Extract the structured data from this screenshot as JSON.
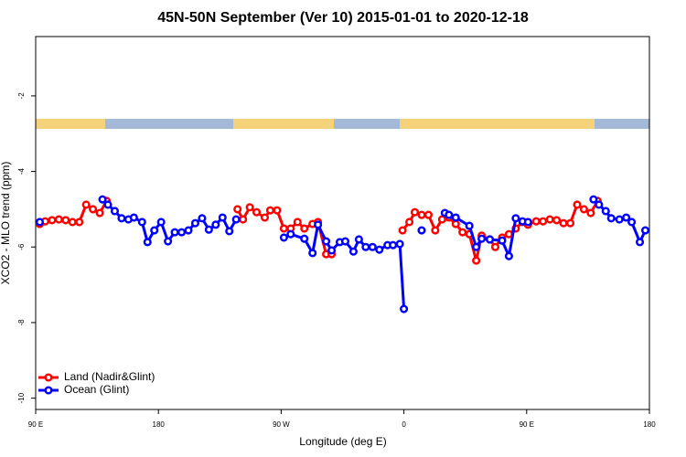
{
  "chart_data": {
    "type": "line",
    "title": "45N-50N September (Ver 10)   2015-01-01 to 2020-12-18",
    "x_label": "Longitude (deg E)",
    "y_label": "XCO2 - MLO trend (ppm)",
    "xlim": [
      90,
      540
    ],
    "xticks": [
      {
        "value": 90,
        "label": "90 E"
      },
      180,
      {
        "value": 270,
        "label": "90 W"
      },
      {
        "value": 360,
        "label": "0"
      },
      {
        "value": 450,
        "label": "90 E"
      },
      {
        "value": 540,
        "label": "180"
      }
    ],
    "ylim": [
      -10.3,
      -0.43
    ],
    "yticks": [
      -10,
      -8,
      -6,
      -4,
      -2
    ],
    "legend": "bottom-left",
    "series": [
      {
        "name": "Land (Nadir&Glint)",
        "color": "#ff0000",
        "x": [
          93,
          97,
          102,
          107,
          112,
          117,
          122,
          127,
          132,
          137,
          142,
          190,
          238,
          242,
          247,
          252,
          258,
          262,
          267,
          272,
          277,
          282,
          287,
          293,
          297,
          303,
          307,
          330,
          359,
          364,
          368,
          373,
          378,
          383,
          388,
          393,
          398,
          403,
          408,
          413,
          417,
          423,
          427,
          432,
          437,
          442,
          447,
          451,
          457,
          462,
          467,
          472,
          477,
          482,
          487,
          492,
          497,
          502
        ],
        "values": [
          -5.39,
          -5.32,
          -5.29,
          -5.27,
          -5.29,
          -5.34,
          -5.34,
          -4.88,
          -5.0,
          -5.1,
          -4.78,
          null,
          -5.0,
          -5.27,
          -4.95,
          -5.08,
          -5.22,
          -5.03,
          -5.03,
          -5.51,
          -5.51,
          -5.34,
          -5.51,
          -5.39,
          -5.34,
          -6.19,
          -6.19,
          null,
          -5.56,
          -5.34,
          -5.08,
          -5.15,
          -5.15,
          -5.56,
          -5.27,
          -5.22,
          -5.39,
          -5.61,
          -5.66,
          -6.36,
          -5.7,
          -5.8,
          -6.0,
          -5.75,
          -5.66,
          -5.51,
          -5.34,
          -5.41,
          -5.32,
          -5.32,
          -5.27,
          -5.29,
          -5.37,
          -5.37,
          -4.88,
          -5.0,
          -5.1,
          -4.78
        ]
      },
      {
        "name": "Ocean (Glint)",
        "color": "#0000ff",
        "x": [
          93,
          116,
          139,
          143,
          148,
          153,
          158,
          162,
          168,
          172,
          177,
          182,
          187,
          192,
          197,
          202,
          207,
          212,
          217,
          222,
          227,
          232,
          237,
          255,
          272,
          277,
          287,
          293,
          297,
          303,
          307,
          313,
          317,
          323,
          327,
          332,
          337,
          342,
          348,
          352,
          357,
          360,
          367,
          373,
          382,
          390,
          393,
          398,
          408,
          413,
          417,
          423,
          432,
          437,
          442,
          447,
          451,
          475,
          499,
          503,
          508,
          512,
          518,
          523,
          527,
          533,
          537
        ],
        "values": [
          -5.34,
          null,
          -4.74,
          -4.88,
          -5.05,
          -5.24,
          -5.27,
          -5.22,
          -5.34,
          -5.87,
          -5.56,
          -5.34,
          -5.85,
          -5.61,
          -5.61,
          -5.56,
          -5.37,
          -5.24,
          -5.54,
          -5.41,
          -5.22,
          -5.58,
          -5.27,
          null,
          -5.75,
          -5.66,
          -5.78,
          -6.16,
          -5.41,
          -5.85,
          -6.09,
          -5.87,
          -5.85,
          -6.12,
          -5.8,
          -6.0,
          -6.0,
          -6.07,
          -5.95,
          -5.95,
          -5.92,
          -7.64,
          null,
          -5.56,
          null,
          -5.1,
          -5.15,
          -5.22,
          -5.44,
          -6.0,
          -5.78,
          -5.8,
          -5.83,
          -6.24,
          -5.24,
          -5.32,
          -5.34,
          null,
          -4.74,
          -4.88,
          -5.05,
          -5.24,
          -5.27,
          -5.22,
          -5.34,
          -5.87,
          -5.56
        ]
      }
    ]
  }
}
